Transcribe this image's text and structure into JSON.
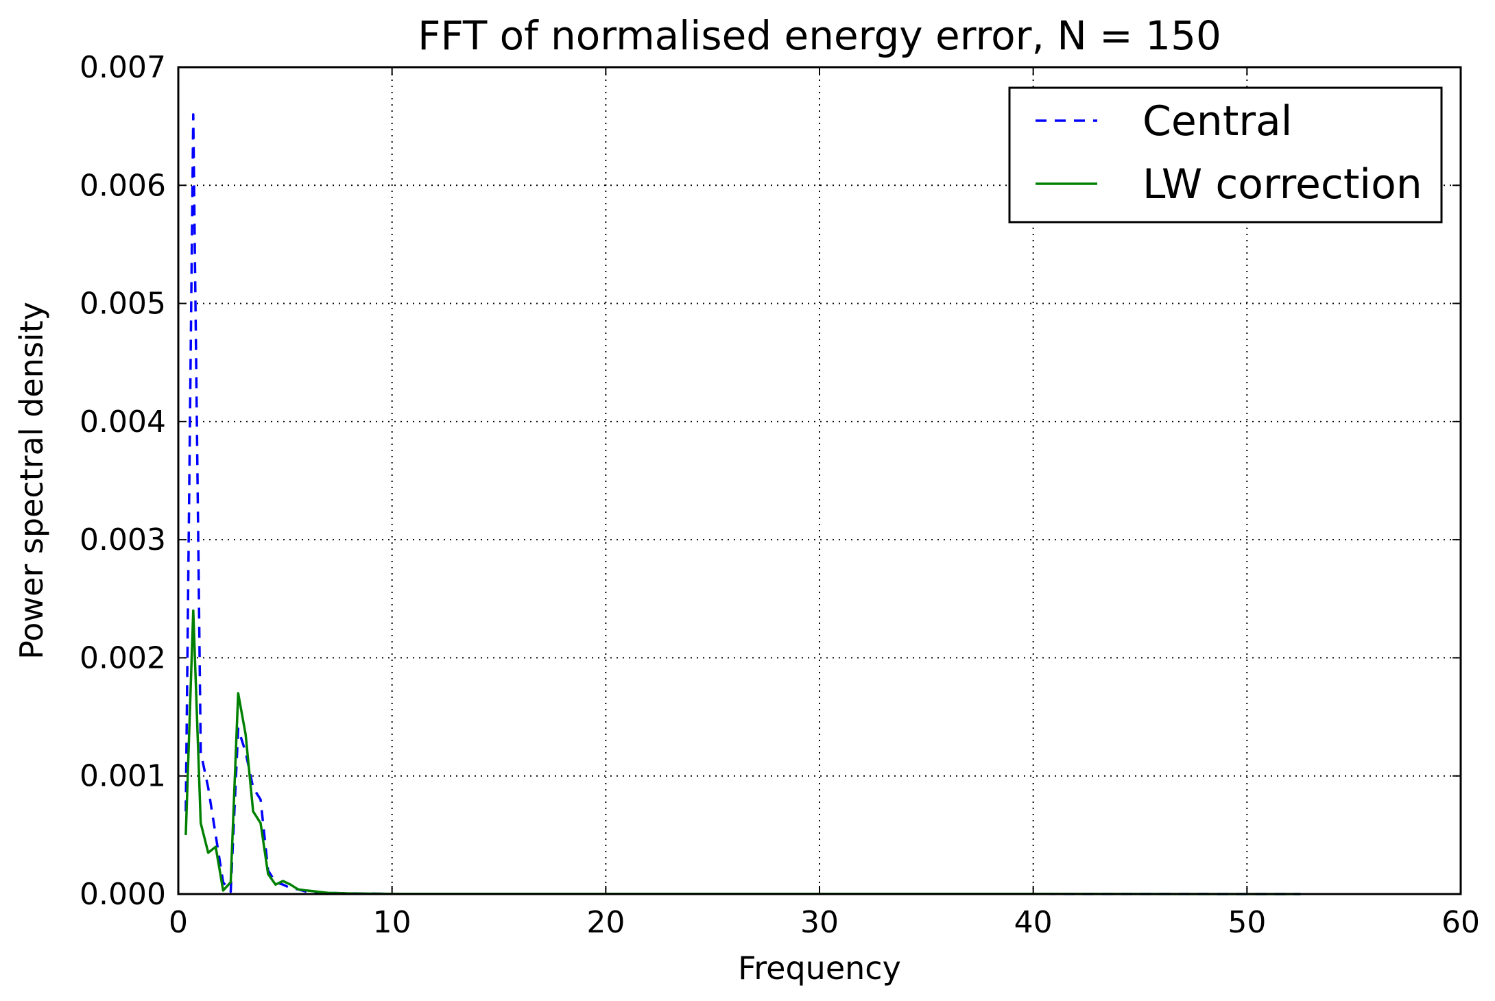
{
  "chart_data": {
    "type": "line",
    "title": "FFT of normalised energy error, N = 150",
    "xlabel": "Frequency",
    "ylabel": "Power spectral density",
    "xlim": [
      0,
      60
    ],
    "ylim": [
      0,
      0.007
    ],
    "xticks": [
      0,
      10,
      20,
      30,
      40,
      50,
      60
    ],
    "yticks": [
      0.0,
      0.001,
      0.002,
      0.003,
      0.004,
      0.005,
      0.006,
      0.007
    ],
    "xtick_labels": [
      "0",
      "10",
      "20",
      "30",
      "40",
      "50",
      "60"
    ],
    "ytick_labels": [
      "0.000",
      "0.001",
      "0.002",
      "0.003",
      "0.004",
      "0.005",
      "0.006",
      "0.007"
    ],
    "grid": true,
    "legend_position": "top-right",
    "series": [
      {
        "name": "Central",
        "color": "#0000ff",
        "style": "dashed",
        "x": [
          0.35,
          0.7,
          1.05,
          1.4,
          1.75,
          2.1,
          2.45,
          2.8,
          3.15,
          3.5,
          3.85,
          4.2,
          4.55,
          4.9,
          5.25,
          5.6,
          6.0,
          7.0,
          8.0,
          10.0,
          15.0,
          20.0,
          30.0,
          40.0,
          52.5
        ],
        "y": [
          0.0007,
          0.0066,
          0.0012,
          0.0009,
          0.0005,
          0.0001,
          2e-05,
          0.0014,
          0.0012,
          0.0009,
          0.0008,
          0.0002,
          0.0001,
          8e-05,
          5e-05,
          4e-05,
          2e-05,
          1e-05,
          5e-06,
          2e-06,
          1e-06,
          1e-06,
          1e-06,
          1e-06,
          0.0
        ]
      },
      {
        "name": "LW correction",
        "color": "#008000",
        "style": "solid",
        "x": [
          0.35,
          0.7,
          1.05,
          1.4,
          1.75,
          2.1,
          2.45,
          2.8,
          3.15,
          3.5,
          3.85,
          4.2,
          4.55,
          4.9,
          5.25,
          5.6,
          6.0,
          7.0,
          8.0,
          10.0,
          15.0,
          20.0,
          30.0,
          40.0,
          52.5
        ],
        "y": [
          0.0005,
          0.0024,
          0.0006,
          0.00035,
          0.0004,
          3e-05,
          0.0001,
          0.0017,
          0.00135,
          0.0007,
          0.0006,
          0.00017,
          8e-05,
          0.00011,
          8e-05,
          4e-05,
          3e-05,
          1e-05,
          5e-06,
          2e-06,
          1e-06,
          1e-06,
          1e-06,
          1e-06,
          0.0
        ]
      }
    ]
  }
}
